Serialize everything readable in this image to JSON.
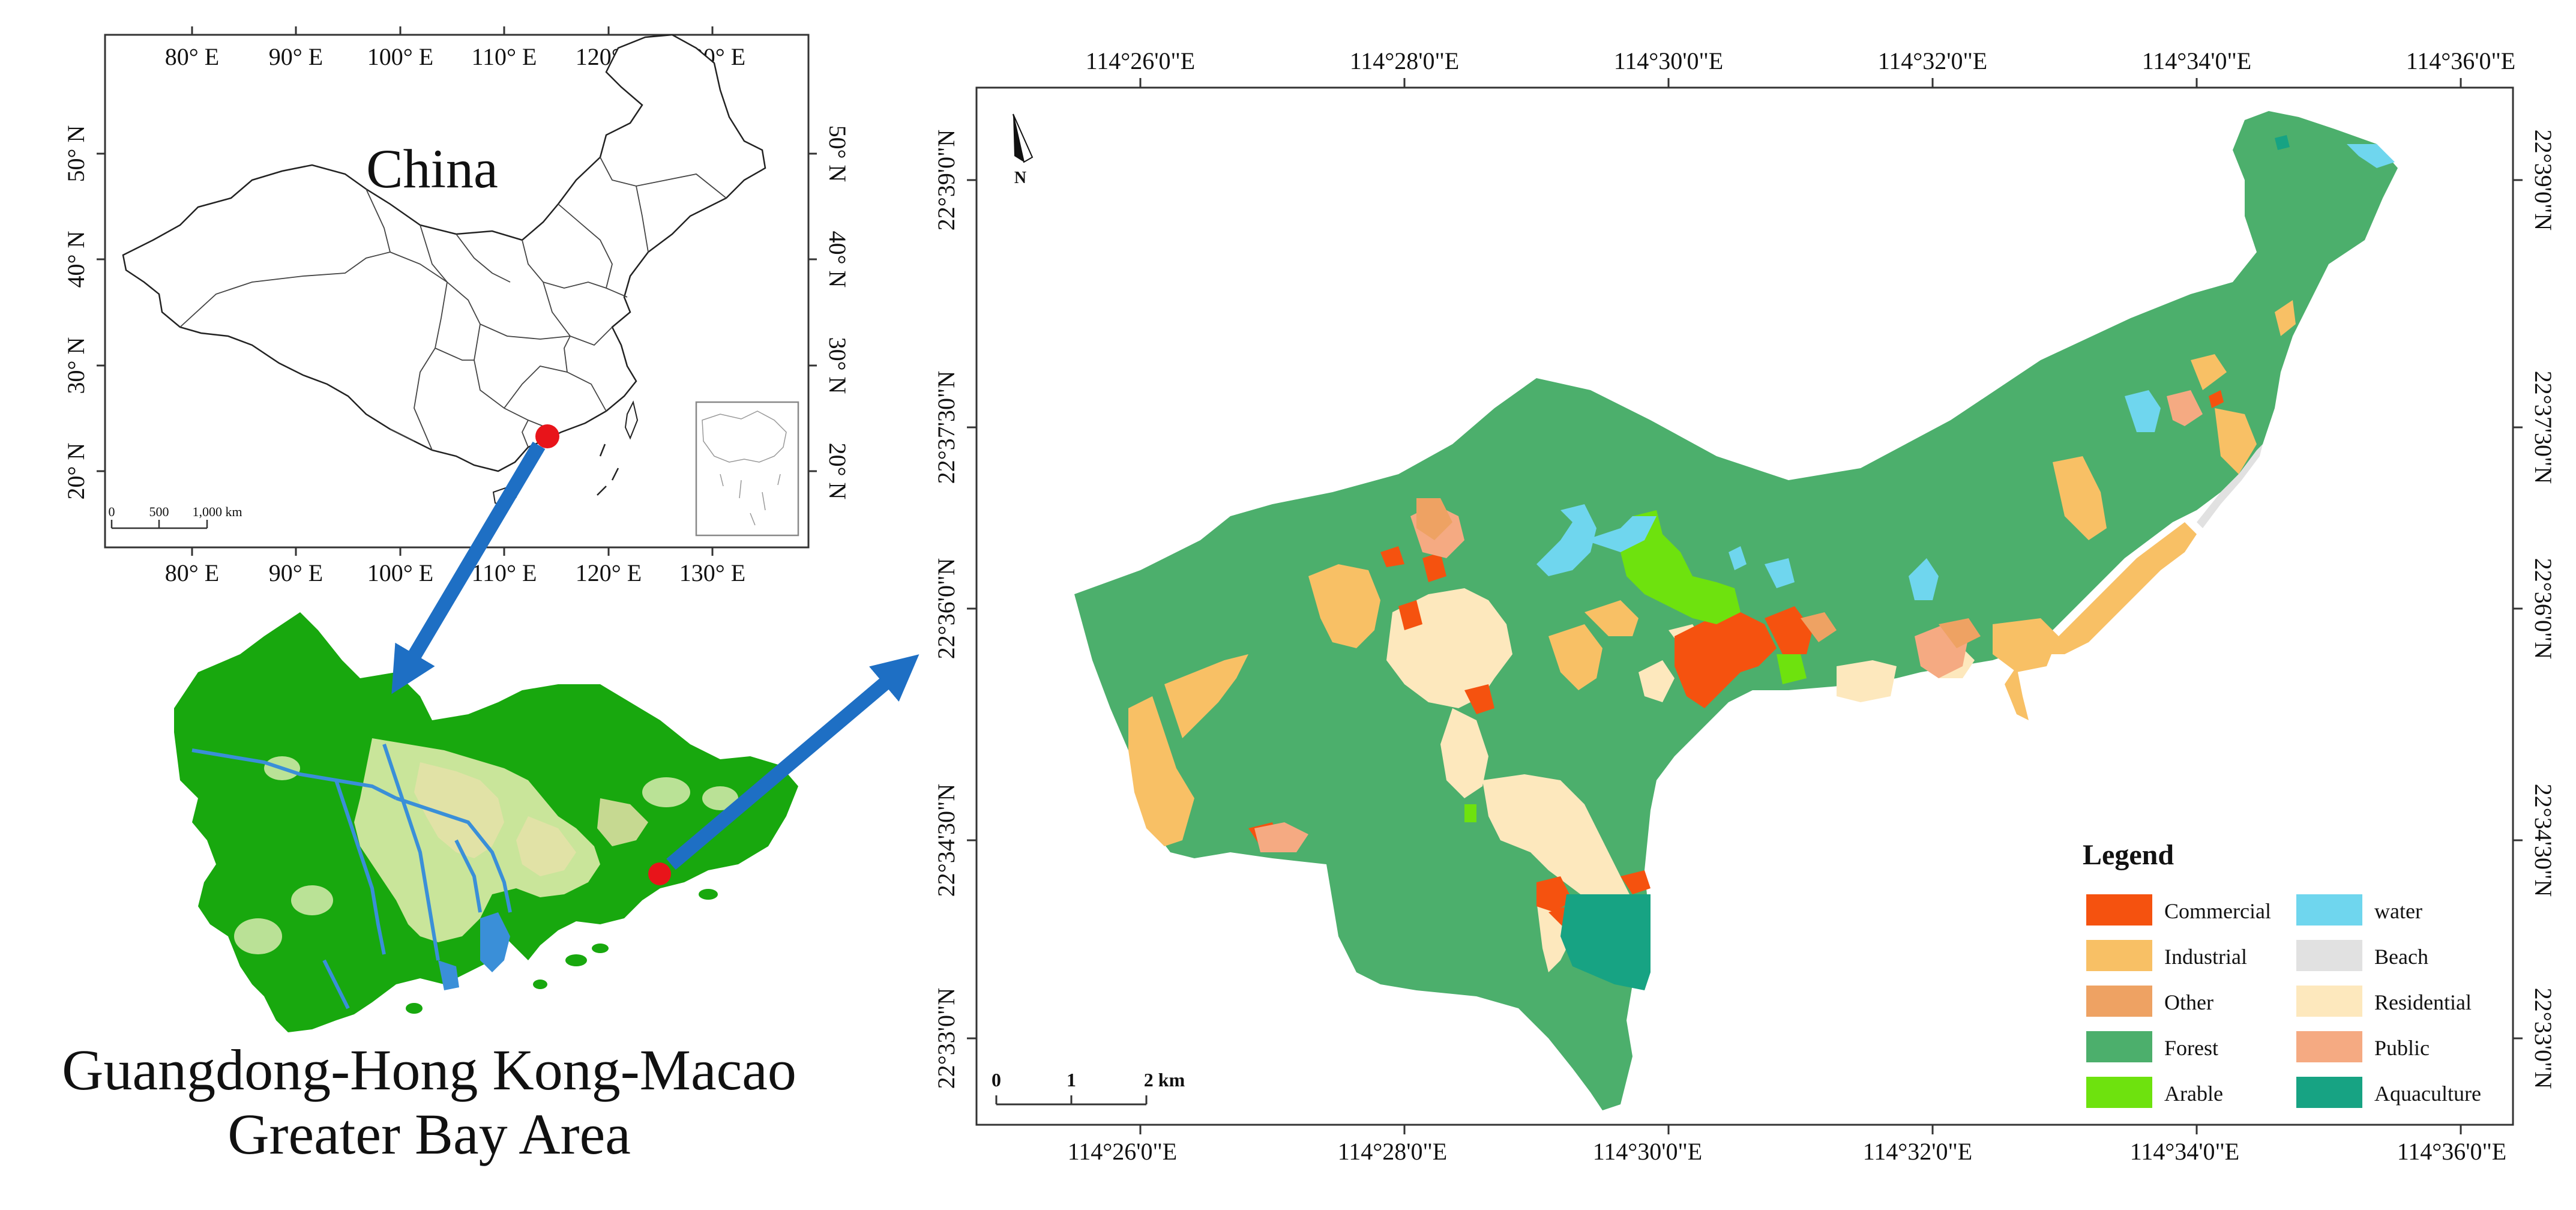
{
  "china_inset": {
    "title": "China",
    "top_lon_ticks": [
      "80° E",
      "90° E",
      "100° E",
      "110° E",
      "120° E",
      "130° E"
    ],
    "bottom_lon_ticks": [
      "80° E",
      "90° E",
      "100° E",
      "110° E",
      "120° E",
      "130° E"
    ],
    "left_lat_ticks": [
      "50° N",
      "40° N",
      "30° N",
      "20° N"
    ],
    "right_lat_ticks": [
      "50° N",
      "40° N",
      "30° N",
      "20° N"
    ],
    "scale_labels": [
      "0",
      "500",
      "1,000 km"
    ],
    "marker_color": "#e8141a"
  },
  "gba": {
    "title_line1": "Guangdong-Hong Kong-Macao",
    "title_line2": "Greater Bay Area"
  },
  "study_map": {
    "top_lon_ticks": [
      "114°26'0\"E",
      "114°28'0\"E",
      "114°30'0\"E",
      "114°32'0\"E",
      "114°34'0\"E",
      "114°36'0\"E"
    ],
    "bottom_lon_ticks": [
      "114°26'0\"E",
      "114°28'0\"E",
      "114°30'0\"E",
      "114°32'0\"E",
      "114°34'0\"E",
      "114°36'0\"E"
    ],
    "left_lat_ticks": [
      "22°39'0\"N",
      "22°37'30\"N",
      "22°36'0\"N",
      "22°34'30\"N",
      "22°33'0\"N"
    ],
    "right_lat_ticks": [
      "22°39'0\"N",
      "22°37'30\"N",
      "22°36'0\"N",
      "22°34'30\"N",
      "22°33'0\"N"
    ],
    "north_label": "N",
    "scale_labels": [
      "0",
      "1",
      "2 km"
    ]
  },
  "legend": {
    "title": "Legend",
    "items": [
      {
        "label": "Commercial",
        "color": "#f5520f"
      },
      {
        "label": "water",
        "color": "#6fd6ee"
      },
      {
        "label": "Industrial",
        "color": "#f8c065"
      },
      {
        "label": "Beach",
        "color": "#e1e1e1"
      },
      {
        "label": "Other",
        "color": "#eea263"
      },
      {
        "label": "Residential",
        "color": "#fde8bd"
      },
      {
        "label": "Forest",
        "color": "#4caf6c"
      },
      {
        "label": "Public",
        "color": "#f5aa82"
      },
      {
        "label": "Arable",
        "color": "#6ee20e"
      },
      {
        "label": "Aquaculture",
        "color": "#17a383"
      }
    ]
  },
  "arrow_color": "#1e6fc4"
}
